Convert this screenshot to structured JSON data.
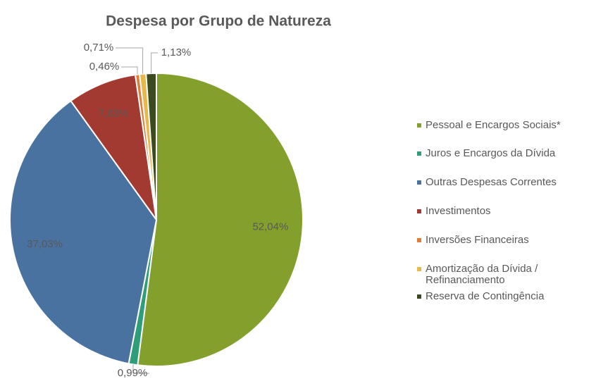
{
  "chart_data": {
    "type": "pie",
    "title": "Despesa por Grupo de Natureza",
    "categories": [
      "Pessoal e Encargos Sociais*",
      "Juros e Encargos da Dívida",
      "Outras Despesas Correntes",
      "Investimentos",
      "Inversões Financeiras",
      "Amortização da Dívida / Refinanciamento",
      "Reserva de Contingência"
    ],
    "values": [
      52.04,
      0.99,
      37.03,
      7.63,
      0.46,
      0.71,
      1.13
    ],
    "value_labels": [
      "52,04%",
      "0,99%",
      "37,03%",
      "7,63%",
      "0,46%",
      "0,71%",
      "1,13%"
    ],
    "colors": [
      "#84a02c",
      "#2e9e7a",
      "#4a72a0",
      "#a33a32",
      "#e07b39",
      "#e8b84a",
      "#3b4a1f"
    ],
    "legend": "right"
  }
}
